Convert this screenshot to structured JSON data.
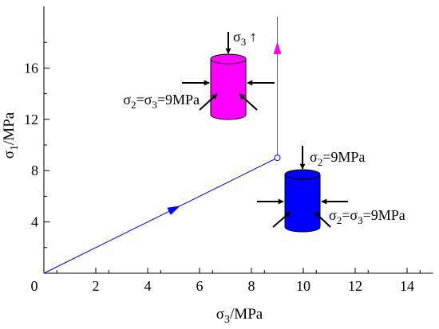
{
  "chart_data": {
    "type": "line",
    "xlabel": {
      "main": "σ",
      "sub": "3",
      "unit": "/MPa"
    },
    "ylabel": {
      "main": "σ",
      "sub": "1",
      "unit": "/MPa"
    },
    "xlim": [
      0,
      15
    ],
    "ylim": [
      0,
      20
    ],
    "xticks": [
      0,
      2,
      4,
      6,
      8,
      10,
      12,
      14
    ],
    "yticks": [
      4,
      8,
      12,
      16
    ],
    "origin_label": "0",
    "grid": false,
    "series": [
      {
        "color": "#0000ff",
        "points": [
          [
            0,
            0
          ],
          [
            9,
            9
          ]
        ]
      },
      {
        "color": "#ff00ff",
        "points": [
          [
            9,
            9
          ],
          [
            9,
            20
          ]
        ]
      }
    ],
    "marker": {
      "x": 9,
      "y": 9
    },
    "annotations": [
      {
        "id": "sigma3-up",
        "parts": [
          [
            "σ",
            ""
          ],
          [
            "3",
            "sub"
          ],
          [
            " ↑",
            ""
          ]
        ]
      },
      {
        "id": "pink-confining",
        "parts": [
          [
            "σ",
            ""
          ],
          [
            "2",
            "sub"
          ],
          [
            "=σ",
            ""
          ],
          [
            "3",
            "sub"
          ],
          [
            "=9MPa",
            ""
          ]
        ]
      },
      {
        "id": "blue-axial",
        "parts": [
          [
            "σ",
            ""
          ],
          [
            "2",
            "sub"
          ],
          [
            "=9MPa",
            ""
          ]
        ]
      },
      {
        "id": "blue-confining",
        "parts": [
          [
            "σ",
            ""
          ],
          [
            "2",
            "sub"
          ],
          [
            "=σ",
            ""
          ],
          [
            "3",
            "sub"
          ],
          [
            "=9MPa",
            ""
          ]
        ]
      }
    ],
    "specimens": [
      {
        "id": "pink-specimen",
        "color": "#ff00ff"
      },
      {
        "id": "blue-specimen",
        "color": "#0000ff"
      }
    ]
  }
}
